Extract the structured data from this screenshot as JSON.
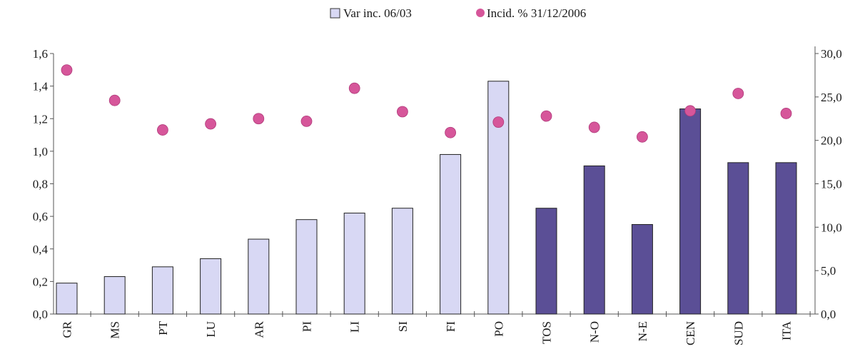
{
  "chart_data": {
    "type": "bar",
    "categories": [
      "GR",
      "MS",
      "PT",
      "LU",
      "AR",
      "PI",
      "LI",
      "SI",
      "FI",
      "PO",
      "TOS",
      "N-O",
      "N-E",
      "CEN",
      "SUD",
      "ITA"
    ],
    "series": [
      {
        "name": "Var inc. 06/03",
        "type": "bar",
        "axis": "left",
        "values": [
          0.19,
          0.23,
          0.29,
          0.34,
          0.46,
          0.58,
          0.62,
          0.65,
          0.98,
          1.43,
          0.65,
          0.91,
          0.55,
          1.26,
          0.93,
          0.93
        ],
        "colors": [
          "#d8d8f4",
          "#d8d8f4",
          "#d8d8f4",
          "#d8d8f4",
          "#d8d8f4",
          "#d8d8f4",
          "#d8d8f4",
          "#d8d8f4",
          "#d8d8f4",
          "#d8d8f4",
          "#5b4f96",
          "#5b4f96",
          "#5b4f96",
          "#5b4f96",
          "#5b4f96",
          "#5b4f96"
        ]
      },
      {
        "name": "Incid. % 31/12/2006",
        "type": "scatter",
        "axis": "right",
        "values": [
          28.1,
          24.6,
          21.2,
          21.9,
          22.5,
          22.2,
          26.0,
          23.3,
          20.9,
          22.1,
          22.8,
          21.5,
          20.4,
          23.4,
          25.4,
          23.1
        ],
        "color": "#d6569a"
      }
    ],
    "y_left": {
      "range": [
        0,
        1.6
      ],
      "ticks": [
        "0,0",
        "0,2",
        "0,4",
        "0,6",
        "0,8",
        "1,0",
        "1,2",
        "1,4",
        "1,6"
      ]
    },
    "y_right": {
      "range": [
        0,
        30
      ],
      "ticks": [
        "0,0",
        "5,0",
        "10,0",
        "15,0",
        "20,0",
        "25,0",
        "30,0"
      ]
    },
    "legend_position": "top",
    "grid": false,
    "title": "",
    "xlabel": "",
    "ylabel": ""
  },
  "colors": {
    "light_bar": "#d8d8f4",
    "dark_bar": "#5b4f96",
    "dot": "#d6569a",
    "axis": "#555555"
  }
}
